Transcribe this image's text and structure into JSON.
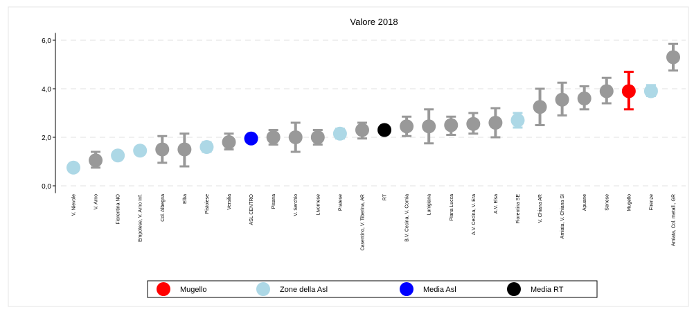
{
  "chart_data": {
    "type": "errorbar",
    "title": "Valore 2018",
    "categories": [
      "V. Nievole",
      "V. Arno",
      "Fiorentina NO",
      "Empolese, V. Arno Inf.",
      "Col. Albegna",
      "Elba",
      "Pistoiese",
      "Versilia",
      "ASL CENTRO",
      "Pisana",
      "V. Serchio",
      "Livornese",
      "Pratese",
      "Casentino, V. Tiberina, AR",
      "RT",
      "B.V. Cecina, V. Cornia",
      "Lunigiana",
      "Piana Lucca",
      "A.V. Cecina, V. Era",
      "A.V. Elsa",
      "Fiorentina SE",
      "V. Chiana AR",
      "Amiata, V. Chiana SI",
      "Apuane",
      "Senese",
      "Mugello",
      "Firenze",
      "Amiata, Col. metall., GR"
    ],
    "values": [
      0.75,
      1.05,
      1.25,
      1.45,
      1.5,
      1.5,
      1.6,
      1.8,
      1.95,
      2.0,
      2.0,
      2.0,
      2.15,
      2.3,
      2.3,
      2.45,
      2.45,
      2.5,
      2.55,
      2.6,
      2.7,
      3.25,
      3.55,
      3.6,
      3.9,
      3.9,
      3.9,
      5.3
    ],
    "lower": [
      0.6,
      0.75,
      1.1,
      1.3,
      0.95,
      0.8,
      1.4,
      1.5,
      1.95,
      1.7,
      1.4,
      1.7,
      1.95,
      1.95,
      2.3,
      2.05,
      1.75,
      2.1,
      2.15,
      2.0,
      2.4,
      2.5,
      2.9,
      3.15,
      3.4,
      3.15,
      3.7,
      4.75
    ],
    "upper": [
      0.9,
      1.4,
      1.4,
      1.6,
      2.05,
      2.15,
      1.8,
      2.15,
      1.95,
      2.3,
      2.6,
      2.3,
      2.35,
      2.6,
      2.3,
      2.85,
      3.15,
      2.85,
      3.0,
      3.2,
      3.0,
      4.0,
      4.25,
      4.1,
      4.45,
      4.7,
      4.15,
      5.85
    ],
    "colors": [
      "#add8e6",
      "#999999",
      "#add8e6",
      "#add8e6",
      "#999999",
      "#999999",
      "#add8e6",
      "#999999",
      "#0000ff",
      "#999999",
      "#999999",
      "#999999",
      "#add8e6",
      "#999999",
      "#000000",
      "#999999",
      "#999999",
      "#999999",
      "#999999",
      "#999999",
      "#add8e6",
      "#999999",
      "#999999",
      "#999999",
      "#999999",
      "#ff0000",
      "#add8e6",
      "#999999"
    ],
    "legend": [
      {
        "name": "Mugello",
        "color": "#ff0000"
      },
      {
        "name": "Zone della Asl",
        "color": "#add8e6"
      },
      {
        "name": "Media Asl",
        "color": "#0000ff"
      },
      {
        "name": "Media RT",
        "color": "#000000"
      }
    ],
    "ylim": [
      -0.3,
      6.3
    ],
    "yticks": [
      {
        "value": 0,
        "label": "0,0"
      },
      {
        "value": 2,
        "label": "2,0"
      },
      {
        "value": 4,
        "label": "4,0"
      },
      {
        "value": 6,
        "label": "6,0"
      }
    ],
    "grid": true
  }
}
